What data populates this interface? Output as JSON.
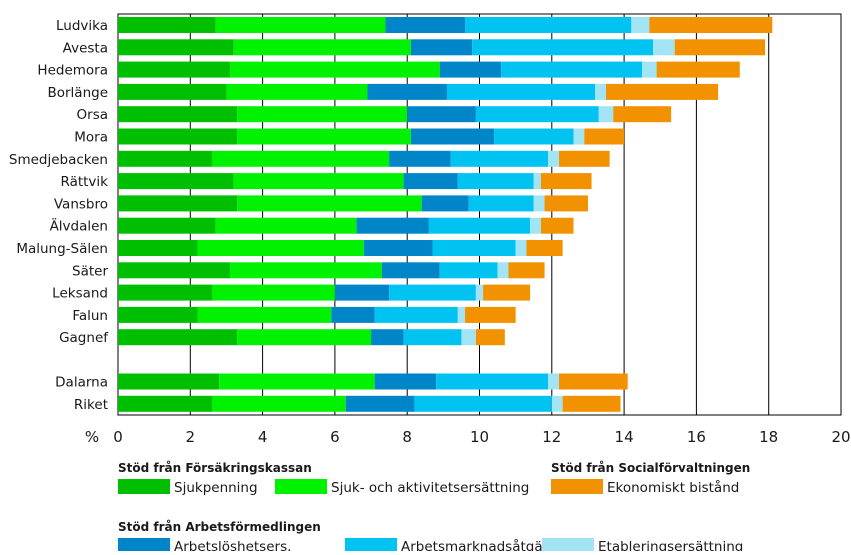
{
  "chart_data": {
    "type": "bar",
    "orientation": "horizontal",
    "stacked": true,
    "unit_label": "%",
    "xlim": [
      0,
      20
    ],
    "x_ticks": [
      0,
      2,
      4,
      6,
      8,
      10,
      12,
      14,
      16,
      18,
      20
    ],
    "grid": "vertical",
    "categories": [
      "Ludvika",
      "Avesta",
      "Hedemora",
      "Borlänge",
      "Orsa",
      "Mora",
      "Smedjebacken",
      "Rättvik",
      "Vansbro",
      "Älvdalen",
      "Malung-Sälen",
      "Säter",
      "Leksand",
      "Falun",
      "Gagnef",
      "Dalarna",
      "Riket"
    ],
    "gap_before": "Dalarna",
    "series": [
      {
        "name": "Sjukpenning",
        "group": "Stöd från Försäkringskassan",
        "color": "#00bf00",
        "values": [
          2.7,
          3.2,
          3.1,
          3.0,
          3.3,
          3.3,
          2.6,
          3.2,
          3.3,
          2.7,
          2.2,
          3.1,
          2.6,
          2.2,
          3.3,
          2.8,
          2.6
        ]
      },
      {
        "name": "Sjuk- och aktivitetsersättning",
        "group": "Stöd från Försäkringskassan",
        "color": "#00f200",
        "values": [
          4.7,
          4.9,
          5.8,
          3.9,
          4.7,
          4.8,
          4.9,
          4.7,
          5.1,
          3.9,
          4.6,
          4.2,
          3.4,
          3.7,
          3.7,
          4.3,
          3.7
        ]
      },
      {
        "name": "Arbetslöshetsers.",
        "group": "Stöd från Arbetsförmedlingen",
        "color": "#0086c8",
        "values": [
          2.2,
          1.7,
          1.7,
          2.2,
          1.9,
          2.3,
          1.7,
          1.5,
          1.3,
          2.0,
          1.9,
          1.6,
          1.5,
          1.2,
          0.9,
          1.7,
          1.9
        ]
      },
      {
        "name": "Arbetsmarknadsåtgärder",
        "group": "Stöd från Arbetsförmedlingen",
        "color": "#00c3f2",
        "values": [
          4.6,
          5.0,
          3.9,
          4.1,
          3.4,
          2.2,
          2.7,
          2.1,
          1.8,
          2.8,
          2.3,
          1.6,
          2.4,
          2.3,
          1.6,
          3.1,
          3.8
        ]
      },
      {
        "name": "Etableringsersättning",
        "group": "Stöd från Arbetsförmedlingen",
        "color": "#a2e4f4",
        "values": [
          0.5,
          0.6,
          0.4,
          0.3,
          0.4,
          0.3,
          0.3,
          0.2,
          0.3,
          0.3,
          0.3,
          0.3,
          0.2,
          0.2,
          0.4,
          0.3,
          0.3
        ]
      },
      {
        "name": "Ekonomiskt bistånd",
        "group": "Stöd från Socialförvaltningen",
        "color": "#f29200",
        "values": [
          3.4,
          2.5,
          2.3,
          3.1,
          1.6,
          1.1,
          1.4,
          1.4,
          1.2,
          0.9,
          1.0,
          1.0,
          1.3,
          1.4,
          0.8,
          1.9,
          1.6
        ]
      }
    ],
    "legend": {
      "placement": "bottom",
      "groups": [
        {
          "title": "Stöd från Försäkringskassan",
          "items": [
            "Sjukpenning",
            "Sjuk- och aktivitetsersättning"
          ]
        },
        {
          "title": "Stöd från Socialförvaltningen",
          "items": [
            "Ekonomiskt bistånd"
          ]
        },
        {
          "title": "Stöd från Arbetsförmedlingen",
          "items": [
            "Arbetslöshetsers.",
            "Arbetsmarknadsåtgärder",
            "Etableringsersättning"
          ]
        }
      ]
    }
  }
}
